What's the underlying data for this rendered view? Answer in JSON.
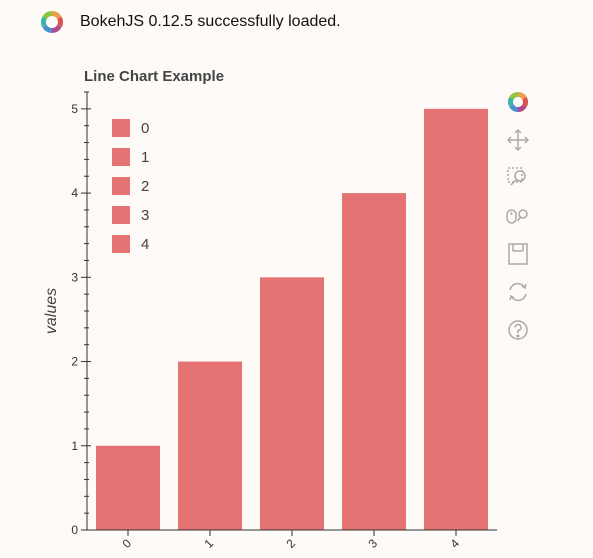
{
  "notice": {
    "message": "BokehJS 0.12.5 successfully loaded.",
    "logo_icon": "bokeh-logo-icon"
  },
  "colors": {
    "bar": "#e57373",
    "axis": "#333333",
    "background": "#fdfaf7",
    "text": "#444444"
  },
  "toolbar": {
    "tools": [
      {
        "name": "bokeh-logo-icon"
      },
      {
        "name": "pan-tool-icon"
      },
      {
        "name": "box-zoom-tool-icon"
      },
      {
        "name": "wheel-zoom-tool-icon"
      },
      {
        "name": "save-tool-icon"
      },
      {
        "name": "reset-tool-icon"
      },
      {
        "name": "help-tool-icon"
      }
    ]
  },
  "chart_data": {
    "type": "bar",
    "title": "Line Chart Example",
    "xlabel": "",
    "ylabel": "values",
    "categories": [
      "0",
      "1",
      "2",
      "3",
      "4"
    ],
    "values": [
      1,
      2,
      3,
      4,
      5
    ],
    "ylim": [
      0,
      5.2
    ],
    "yticks": [
      "0",
      "1",
      "2",
      "3",
      "4",
      "5"
    ],
    "grid": false,
    "legend": {
      "placement": "top-left",
      "entries": [
        "0",
        "1",
        "2",
        "3",
        "4"
      ]
    }
  }
}
